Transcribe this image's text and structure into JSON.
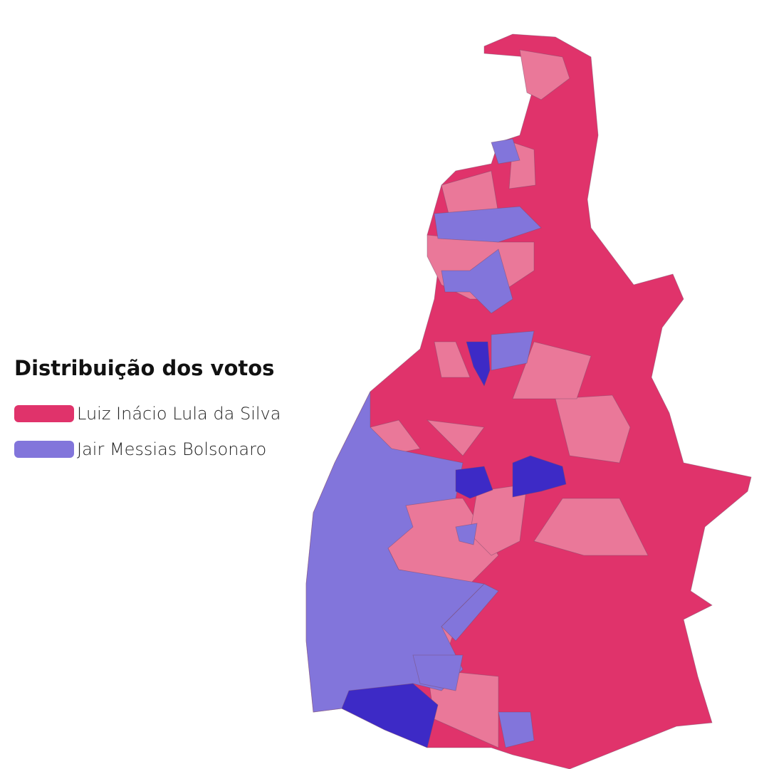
{
  "legend": {
    "title": "Distribuição dos votos",
    "items": [
      {
        "label": "Luiz Inácio Lula da Silva",
        "color": "#e0336b"
      },
      {
        "label": "Jair Messias Bolsonaro",
        "color": "#8275db"
      }
    ]
  }
}
